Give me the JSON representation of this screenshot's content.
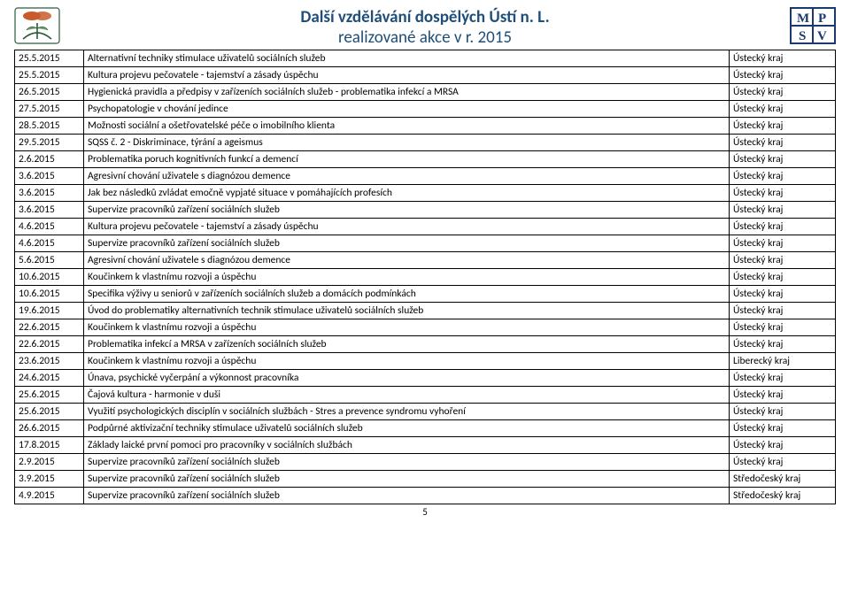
{
  "title_line1": "Další vzdělávání dospělých Ústí n. L.",
  "title_line2": "realizované akce v r. 2015",
  "page_number": "5",
  "rows": [
    {
      "date": "25.5.2015",
      "desc": "Alternativní techniky stimulace uživatelů sociálních služeb",
      "region": "Ústecký kraj"
    },
    {
      "date": "25.5.2015",
      "desc": "Kultura projevu pečovatele - tajemství a zásady úspěchu",
      "region": "Ústecký kraj"
    },
    {
      "date": "26.5.2015",
      "desc": "Hygienická pravidla a předpisy v zařízeních sociálních služeb - problematika infekcí a MRSA",
      "region": "Ústecký kraj"
    },
    {
      "date": "27.5.2015",
      "desc": "Psychopatologie v chování jedince",
      "region": "Ústecký kraj"
    },
    {
      "date": "28.5.2015",
      "desc": "Možnosti sociální a ošetřovatelské péče o imobilního klienta",
      "region": "Ústecký kraj"
    },
    {
      "date": "29.5.2015",
      "desc": "SQSS č. 2 - Diskriminace, týrání a ageismus",
      "region": "Ústecký kraj"
    },
    {
      "date": "2.6.2015",
      "desc": "Problematika poruch kognitivních funkcí a demencí",
      "region": "Ústecký kraj"
    },
    {
      "date": "3.6.2015",
      "desc": "Agresivní chování uživatele s diagnózou demence",
      "region": "Ústecký kraj"
    },
    {
      "date": "3.6.2015",
      "desc": "Jak bez následků zvládat emočně vypjaté situace v pomáhajících profesích",
      "region": "Ústecký kraj"
    },
    {
      "date": "3.6.2015",
      "desc": "Supervize pracovníků zařízení sociálních služeb",
      "region": "Ústecký kraj"
    },
    {
      "date": "4.6.2015",
      "desc": "Kultura projevu pečovatele - tajemství a zásady úspěchu",
      "region": "Ústecký kraj"
    },
    {
      "date": "4.6.2015",
      "desc": "Supervize pracovníků zařízení sociálních služeb",
      "region": "Ústecký kraj"
    },
    {
      "date": "5.6.2015",
      "desc": "Agresivní chování uživatele s diagnózou demence",
      "region": "Ústecký kraj"
    },
    {
      "date": "10.6.2015",
      "desc": "Koučinkem k vlastnímu rozvoji a úspěchu",
      "region": "Ústecký kraj"
    },
    {
      "date": "10.6.2015",
      "desc": "Specifika výživy u seniorů v zařízeních sociálních služeb a domácích podmínkách",
      "region": "Ústecký kraj"
    },
    {
      "date": "19.6.2015",
      "desc": "Úvod do problematiky alternativních technik stimulace uživatelů sociálních služeb",
      "region": "Ústecký kraj"
    },
    {
      "date": "22.6.2015",
      "desc": "Koučinkem k vlastnímu rozvoji a úspěchu",
      "region": "Ústecký kraj"
    },
    {
      "date": "22.6.2015",
      "desc": "Problematika infekcí a MRSA v zařízeních sociálních služeb",
      "region": "Ústecký kraj"
    },
    {
      "date": "23.6.2015",
      "desc": "Koučinkem k vlastnímu rozvoji a úspěchu",
      "region": "Liberecký kraj"
    },
    {
      "date": "24.6.2015",
      "desc": "Únava, psychické vyčerpání a výkonnost pracovníka",
      "region": "Ústecký kraj"
    },
    {
      "date": "25.6.2015",
      "desc": "Čajová kultura - harmonie v duši",
      "region": "Ústecký kraj"
    },
    {
      "date": "25.6.2015",
      "desc": "Využití psychologických disciplín v sociálních službách - Stres a prevence syndromu vyhoření",
      "region": "Ústecký kraj"
    },
    {
      "date": "26.6.2015",
      "desc": "Podpůrné aktivizační techniky stimulace uživatelů sociálních služeb",
      "region": "Ústecký kraj"
    },
    {
      "date": "17.8.2015",
      "desc": "Základy laické první pomoci pro pracovníky v sociálních službách",
      "region": "Ústecký kraj"
    },
    {
      "date": "2.9.2015",
      "desc": "Supervize pracovníků zařízení sociálních služeb",
      "region": "Ústecký kraj"
    },
    {
      "date": "3.9.2015",
      "desc": "Supervize pracovníků zařízení sociálních služeb",
      "region": "Středočeský kraj"
    },
    {
      "date": "4.9.2015",
      "desc": "Supervize pracovníků zařízení sociálních služeb",
      "region": "Středočeský kraj"
    }
  ]
}
